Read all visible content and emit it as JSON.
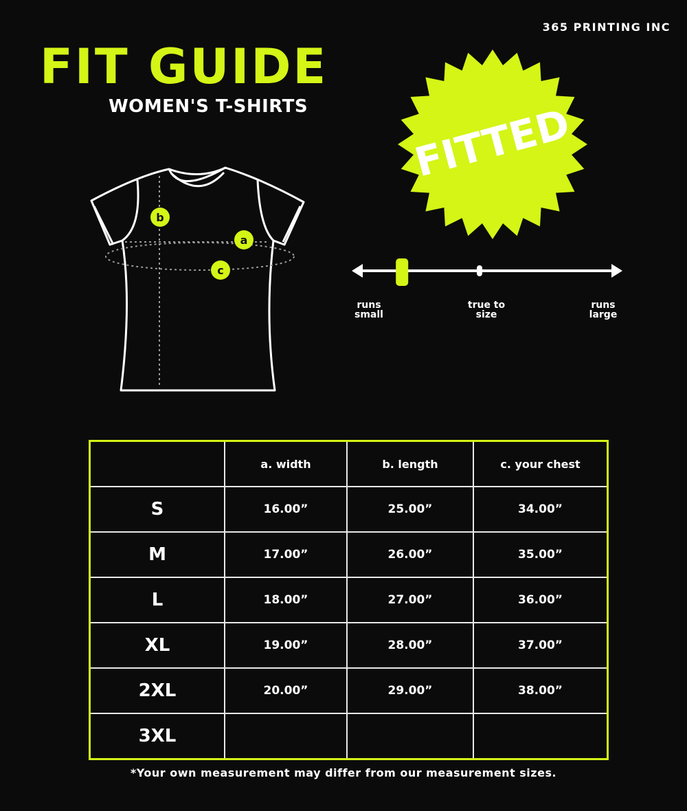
{
  "brand": "365 PRINTING INC",
  "title": "FIT GUIDE",
  "subtitle": "WOMEN'S T-SHIRTS",
  "badge": "FITTED",
  "accent_color": "#d4f516",
  "diagram": {
    "labels": [
      "a",
      "b",
      "c"
    ]
  },
  "fit_scale": {
    "labels": {
      "left": "runs\nsmall",
      "center": "true to\nsize",
      "right": "runs\nlarge"
    },
    "value": 0.18
  },
  "table": {
    "headers": [
      "",
      "a. width",
      "b. length",
      "c. your chest"
    ],
    "rows": [
      [
        "S",
        "16.00”",
        "25.00”",
        "34.00”"
      ],
      [
        "M",
        "17.00”",
        "26.00”",
        "35.00”"
      ],
      [
        "L",
        "18.00”",
        "27.00”",
        "36.00”"
      ],
      [
        "XL",
        "19.00”",
        "28.00”",
        "37.00”"
      ],
      [
        "2XL",
        "20.00”",
        "29.00”",
        "38.00”"
      ],
      [
        "3XL",
        "",
        "",
        ""
      ]
    ]
  },
  "note": "*Your own measurement may differ from our measurement sizes."
}
